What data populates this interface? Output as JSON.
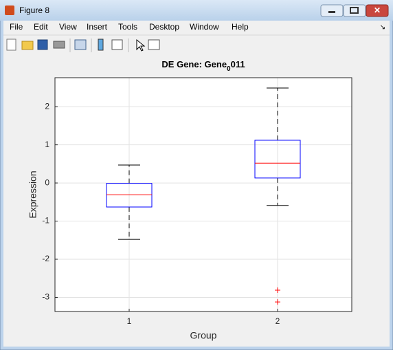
{
  "window": {
    "title": "Figure 8"
  },
  "menu": [
    "File",
    "Edit",
    "View",
    "Insert",
    "Tools",
    "Desktop",
    "Window",
    "Help"
  ],
  "chart_data": {
    "type": "box",
    "title_parts": [
      "DE Gene: Gene",
      "0",
      "011"
    ],
    "x_label": "Group",
    "y_label": "Expression",
    "categories": [
      "1",
      "2"
    ],
    "boxes": [
      {
        "whisker_low": -1.48,
        "q1": -0.63,
        "median": -0.31,
        "q3": -0.01,
        "whisker_high": 0.47,
        "outliers": []
      },
      {
        "whisker_low": -0.59,
        "q1": 0.13,
        "median": 0.52,
        "q3": 1.12,
        "whisker_high": 2.49,
        "outliers": [
          -2.81,
          -3.12
        ]
      }
    ],
    "xlim": [
      0.5,
      2.5
    ],
    "xticks": [
      1,
      2
    ],
    "ylim": [
      -3.37,
      2.76
    ],
    "yticks": [
      -3,
      -2,
      -1,
      0,
      1,
      2
    ],
    "grid": true,
    "box_color": "#0000ff",
    "median_color": "#ff0000",
    "whisker_color": "#000000",
    "outlier_color": "#ff0000"
  }
}
